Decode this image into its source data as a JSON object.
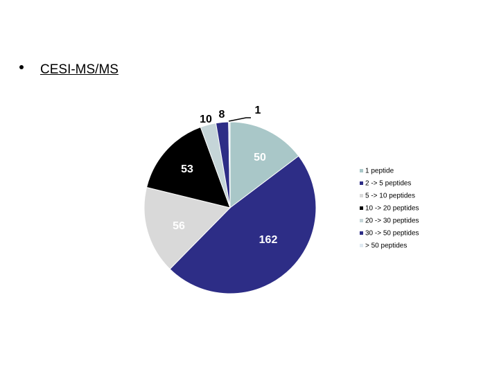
{
  "heading": "CESI-MS/MS",
  "chart_data": {
    "type": "pie",
    "categories": [
      "1 peptide",
      "2 -> 5 peptides",
      "5 -> 10 peptides",
      "10 -> 20 peptides",
      "20 -> 30 peptides",
      "30 -> 50 peptides",
      "> 50 peptides"
    ],
    "values": [
      50,
      162,
      56,
      53,
      10,
      8,
      1
    ],
    "colors": [
      "#a9c7c8",
      "#2d2d86",
      "#d9d9d9",
      "#000000",
      "#c5d5d8",
      "#2d2d86",
      "#dfeaf2"
    ],
    "legend": "right"
  }
}
